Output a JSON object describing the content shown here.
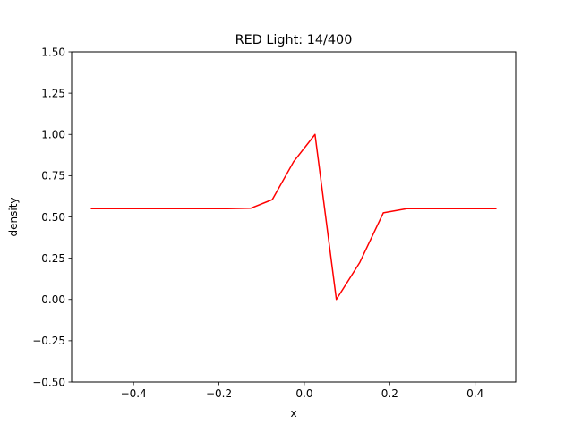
{
  "chart_data": {
    "type": "line",
    "title": "RED Light: 14/400",
    "xlabel": "x",
    "ylabel": "density",
    "xlim": [
      -0.545,
      0.495
    ],
    "ylim": [
      -0.5,
      1.5
    ],
    "xticks": [
      -0.4,
      -0.2,
      0.0,
      0.2,
      0.4
    ],
    "xtick_labels": [
      "−0.4",
      "−0.2",
      "0.0",
      "0.2",
      "0.4"
    ],
    "yticks": [
      -0.5,
      -0.25,
      0.0,
      0.25,
      0.5,
      0.75,
      1.0,
      1.25,
      1.5
    ],
    "ytick_labels": [
      "−0.50",
      "−0.25",
      "0.00",
      "0.25",
      "0.50",
      "0.75",
      "1.00",
      "1.25",
      "1.50"
    ],
    "grid": false,
    "series": [
      {
        "color": "#ff0000",
        "x": [
          -0.5,
          -0.45,
          -0.4,
          -0.35,
          -0.3,
          -0.25,
          -0.2,
          -0.18,
          -0.125,
          -0.075,
          -0.025,
          0.025,
          0.075,
          0.13,
          0.185,
          0.24,
          0.3,
          0.35,
          0.4,
          0.45
        ],
        "y": [
          0.55,
          0.55,
          0.55,
          0.55,
          0.55,
          0.55,
          0.55,
          0.55,
          0.553,
          0.605,
          0.835,
          1.0,
          0.0,
          0.225,
          0.525,
          0.55,
          0.55,
          0.55,
          0.55,
          0.55
        ]
      }
    ]
  }
}
